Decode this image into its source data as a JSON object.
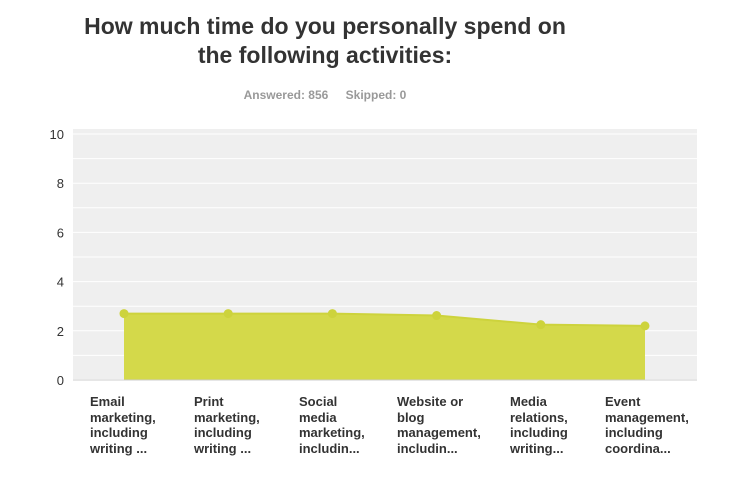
{
  "title_line1": "How much time do you personally spend on",
  "title_line2": "the following activities:",
  "answered": "Answered: 856",
  "skipped": "Skipped: 0",
  "colors": {
    "area": "#d4d94a",
    "line": "#cdd33c",
    "plot_bg": "#efefef",
    "grid": "#ffffff"
  },
  "chart_data": {
    "type": "area",
    "title": "How much time do you personally spend on the following activities:",
    "categories": [
      "Email marketing, including writing ...",
      "Print marketing, including writing ...",
      "Social media marketing, includin...",
      "Website or blog management, includin...",
      "Media relations, including writing...",
      "Event management, including coordina..."
    ],
    "category_lines": [
      [
        "Email",
        "marketing,",
        "including",
        "writing ..."
      ],
      [
        "Print",
        "marketing,",
        "including",
        "writing ..."
      ],
      [
        "Social",
        "media",
        "marketing,",
        "includin..."
      ],
      [
        "Website or",
        "blog",
        "management,",
        "includin..."
      ],
      [
        "Media",
        "relations,",
        "including",
        "writing..."
      ],
      [
        "Event",
        "management,",
        "including",
        "coordina..."
      ]
    ],
    "values": [
      2.7,
      2.7,
      2.7,
      2.62,
      2.25,
      2.2
    ],
    "ylim": [
      0,
      10
    ],
    "yticks": [
      "0",
      "2",
      "4",
      "6",
      "8",
      "10"
    ],
    "grid": true,
    "legend": "none"
  }
}
